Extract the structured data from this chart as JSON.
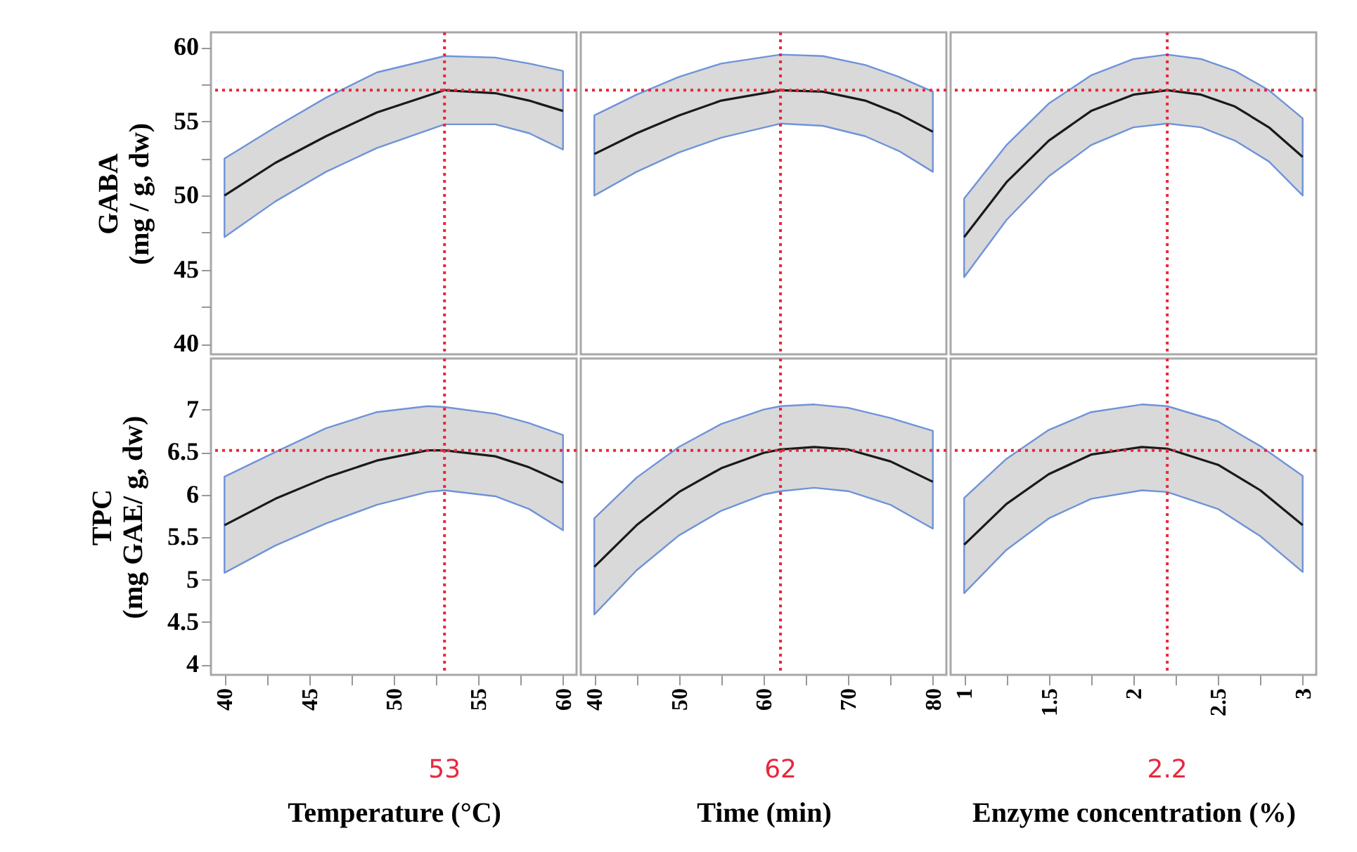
{
  "chart_data": [
    {
      "type": "line",
      "ylabel": "GABA\n(mg / g, dw)",
      "xlim": [
        39.2,
        60.8
      ],
      "ylim": [
        39.3,
        61
      ],
      "yticks": [
        40,
        {
          "value": 42.5,
          "label": null
        },
        45,
        {
          "value": 47.5,
          "label": null
        },
        50,
        {
          "value": 52.5,
          "label": null
        },
        55,
        {
          "value": 57.5,
          "label": null
        },
        60
      ],
      "tick_labels": "y",
      "series": [
        {
          "color": "#1a1a1a",
          "x": [
            40,
            43,
            46,
            49,
            53,
            56,
            58,
            60
          ],
          "values": [
            50.0,
            52.2,
            54.0,
            55.6,
            57.1,
            56.9,
            56.4,
            55.7
          ],
          "lower": [
            47.2,
            49.6,
            51.6,
            53.2,
            54.8,
            54.8,
            54.2,
            53.1
          ],
          "upper": [
            52.5,
            54.6,
            56.6,
            58.3,
            59.4,
            59.3,
            58.9,
            58.4
          ]
        }
      ],
      "ref_lines": [
        {
          "axis": "x",
          "value": 53,
          "color": "#e8283c",
          "line_style": "dotted"
        },
        {
          "axis": "y",
          "value": 57.1,
          "color": "#e8283c",
          "line_style": "dotted"
        }
      ]
    },
    {
      "type": "line",
      "xlim": [
        38.4,
        81.6
      ],
      "ylim": [
        39.3,
        61
      ],
      "tick_labels": false,
      "series": [
        {
          "color": "#1a1a1a",
          "x": [
            40,
            45,
            50,
            55,
            62,
            67,
            72,
            76,
            80
          ],
          "values": [
            52.8,
            54.2,
            55.4,
            56.4,
            57.1,
            57.0,
            56.4,
            55.5,
            54.3
          ],
          "lower": [
            50.0,
            51.6,
            52.9,
            53.9,
            54.85,
            54.7,
            54.0,
            53.0,
            51.6
          ],
          "upper": [
            55.4,
            56.8,
            58.0,
            58.9,
            59.5,
            59.4,
            58.8,
            58.0,
            57.0
          ]
        }
      ],
      "ref_lines": [
        {
          "axis": "x",
          "value": 62,
          "color": "#e8283c",
          "line_style": "dotted"
        },
        {
          "axis": "y",
          "value": 57.1,
          "color": "#e8283c",
          "line_style": "dotted"
        }
      ]
    },
    {
      "type": "line",
      "xlim": [
        0.92,
        3.08
      ],
      "ylim": [
        39.3,
        61
      ],
      "tick_labels": false,
      "series": [
        {
          "color": "#1a1a1a",
          "x": [
            1,
            1.25,
            1.5,
            1.75,
            2,
            2.2,
            2.4,
            2.6,
            2.8,
            3
          ],
          "values": [
            47.2,
            50.9,
            53.7,
            55.7,
            56.8,
            57.1,
            56.8,
            56.0,
            54.6,
            52.6
          ],
          "lower": [
            44.5,
            48.35,
            51.3,
            53.4,
            54.6,
            54.85,
            54.6,
            53.7,
            52.3,
            50.0
          ],
          "upper": [
            49.8,
            53.4,
            56.2,
            58.1,
            59.2,
            59.5,
            59.2,
            58.4,
            57.1,
            55.2
          ]
        }
      ],
      "ref_lines": [
        {
          "axis": "x",
          "value": 2.2,
          "color": "#e8283c",
          "line_style": "dotted"
        },
        {
          "axis": "y",
          "value": 57.1,
          "color": "#e8283c",
          "line_style": "dotted"
        }
      ]
    },
    {
      "type": "line",
      "xlabel": "Temperature (°C)",
      "ylabel": "TPC\n(mg GAE/ g, dw)",
      "xlim": [
        39.2,
        60.8
      ],
      "ylim": [
        3.88,
        7.6
      ],
      "xticks": [
        40,
        {
          "value": 42.5,
          "label": null
        },
        45,
        {
          "value": 47.5,
          "label": null
        },
        50,
        {
          "value": 52.5,
          "label": null
        },
        55,
        {
          "value": 57.5,
          "label": null
        },
        60
      ],
      "yticks": [
        4,
        4.5,
        5,
        5.5,
        6,
        6.5,
        7
      ],
      "series": [
        {
          "color": "#1a1a1a",
          "x": [
            40,
            43,
            46,
            49,
            52,
            53,
            56,
            58,
            60
          ],
          "values": [
            5.64,
            5.95,
            6.2,
            6.4,
            6.52,
            6.52,
            6.45,
            6.32,
            6.14
          ],
          "lower": [
            5.08,
            5.4,
            5.66,
            5.88,
            6.03,
            6.05,
            5.98,
            5.83,
            5.58
          ],
          "upper": [
            6.21,
            6.5,
            6.78,
            6.97,
            7.04,
            7.03,
            6.95,
            6.84,
            6.7
          ]
        }
      ],
      "ref_lines": [
        {
          "axis": "x",
          "value": 53,
          "label": "53",
          "color": "#e8283c",
          "line_style": "dotted"
        },
        {
          "axis": "y",
          "value": 6.52,
          "color": "#e8283c",
          "line_style": "dotted"
        }
      ]
    },
    {
      "type": "line",
      "xlabel": "Time (min)",
      "xlim": [
        38.4,
        81.6
      ],
      "ylim": [
        3.88,
        7.6
      ],
      "xticks": [
        40,
        {
          "value": 45,
          "label": null
        },
        50,
        {
          "value": 55,
          "label": null
        },
        60,
        {
          "value": 65,
          "label": null
        },
        70,
        {
          "value": 75,
          "label": null
        },
        80
      ],
      "tick_labels": "x",
      "series": [
        {
          "color": "#1a1a1a",
          "x": [
            40,
            45,
            50,
            55,
            60,
            62,
            66,
            70,
            75,
            80
          ],
          "values": [
            5.15,
            5.64,
            6.03,
            6.31,
            6.49,
            6.53,
            6.56,
            6.53,
            6.39,
            6.15
          ],
          "lower": [
            4.59,
            5.11,
            5.52,
            5.81,
            6.0,
            6.04,
            6.08,
            6.04,
            5.88,
            5.6
          ],
          "upper": [
            5.72,
            6.2,
            6.56,
            6.83,
            7.0,
            7.04,
            7.06,
            7.02,
            6.9,
            6.75
          ]
        }
      ],
      "ref_lines": [
        {
          "axis": "x",
          "value": 62,
          "label": "62",
          "color": "#e8283c",
          "line_style": "dotted"
        },
        {
          "axis": "y",
          "value": 6.52,
          "color": "#e8283c",
          "line_style": "dotted"
        }
      ]
    },
    {
      "type": "line",
      "xlabel": "Enzyme concentration (%)",
      "xlim": [
        0.92,
        3.08
      ],
      "ylim": [
        3.88,
        7.6
      ],
      "xticks": [
        1,
        {
          "value": 1.25,
          "label": null
        },
        1.5,
        {
          "value": 1.75,
          "label": null
        },
        2,
        {
          "value": 2.25,
          "label": null
        },
        2.5,
        {
          "value": 2.75,
          "label": null
        },
        3
      ],
      "tick_labels": "x",
      "series": [
        {
          "color": "#1a1a1a",
          "x": [
            1,
            1.25,
            1.5,
            1.75,
            2.05,
            2.2,
            2.5,
            2.75,
            3
          ],
          "values": [
            5.41,
            5.89,
            6.24,
            6.47,
            6.56,
            6.54,
            6.35,
            6.05,
            5.64
          ],
          "lower": [
            4.84,
            5.35,
            5.72,
            5.95,
            6.05,
            6.03,
            5.83,
            5.51,
            5.09
          ],
          "upper": [
            5.96,
            6.42,
            6.76,
            6.97,
            7.06,
            7.04,
            6.86,
            6.57,
            6.22
          ]
        }
      ],
      "ref_lines": [
        {
          "axis": "x",
          "value": 2.2,
          "label": "2.2",
          "color": "#e8283c",
          "line_style": "dotted"
        },
        {
          "axis": "y",
          "value": 6.52,
          "color": "#e8283c",
          "line_style": "dotted"
        }
      ]
    }
  ]
}
